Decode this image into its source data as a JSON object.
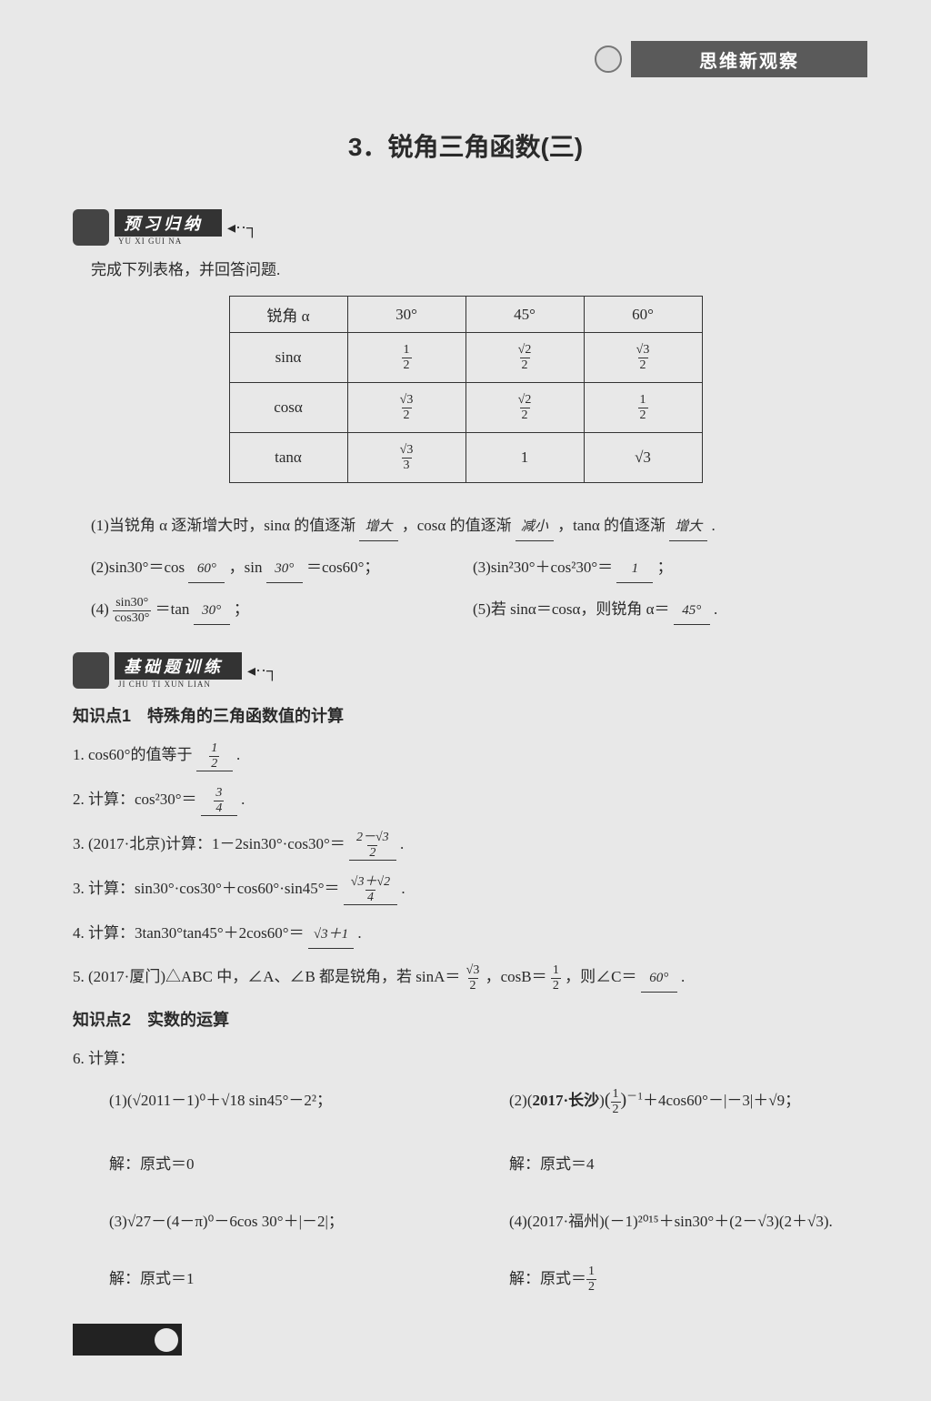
{
  "header": {
    "banner_text": "思维新观察"
  },
  "title": "3．锐角三角函数(三)",
  "section1": {
    "label": "预习归纳",
    "pinyin": "YU XI GUI NA",
    "instruction": "完成下列表格，并回答问题."
  },
  "table": {
    "header": [
      "锐角 α",
      "30°",
      "45°",
      "60°"
    ],
    "rows": [
      {
        "label": "sinα",
        "cells": [
          {
            "num": "1",
            "den": "2"
          },
          {
            "num": "√2",
            "den": "2"
          },
          {
            "num": "√3",
            "den": "2"
          }
        ]
      },
      {
        "label": "cosα",
        "cells": [
          {
            "num": "√3",
            "den": "2"
          },
          {
            "num": "√2",
            "den": "2"
          },
          {
            "num": "1",
            "den": "2"
          }
        ]
      },
      {
        "label": "tanα",
        "cells": [
          {
            "num": "√3",
            "den": "3"
          },
          {
            "num": "1",
            "den": ""
          },
          {
            "num": "√3",
            "den": ""
          }
        ]
      }
    ]
  },
  "q1": {
    "prefix": "(1)当锐角 α 逐渐增大时，sinα 的值逐渐",
    "blank1": "增大",
    "mid": "，cosα 的值逐渐",
    "blank2": "减小",
    "mid2": "，tanα 的值逐渐",
    "blank3": "增大",
    "suffix": "."
  },
  "q2": {
    "left": {
      "p1": "(2)sin30°＝cos",
      "b1": "60°",
      "p2": "，sin",
      "b2": "30°",
      "p3": "＝cos60°；"
    },
    "right": {
      "p1": "(3)sin²30°＋cos²30°＝",
      "b1": "1",
      "p2": "；"
    }
  },
  "q4": {
    "left": {
      "p1": "(4)",
      "frac_num": "sin30°",
      "frac_den": "cos30°",
      "p2": "＝tan",
      "b1": "30°",
      "p3": "；"
    },
    "right": {
      "p1": "(5)若 sinα＝cosα，则锐角 α＝",
      "b1": "45°",
      "p2": "."
    }
  },
  "section2": {
    "label": "基础题训练",
    "pinyin": "JI CHU TI XUN LIAN"
  },
  "kp1": "知识点1　特殊角的三角函数值的计算",
  "p1": {
    "text": "1. cos60°的值等于",
    "ans_num": "1",
    "ans_den": "2",
    "suffix": "."
  },
  "p2": {
    "text": "2. 计算：cos²30°＝",
    "ans_num": "3",
    "ans_den": "4",
    "suffix": "."
  },
  "p3a": {
    "text": "3. (2017·北京)计算：1－2sin30°·cos30°＝",
    "ans_num": "2－√3",
    "ans_den": "2",
    "suffix": "."
  },
  "p3b": {
    "text": "3. 计算：sin30°·cos30°＋cos60°·sin45°＝",
    "ans_num": "√3＋√2",
    "ans_den": "4",
    "suffix": "."
  },
  "p4": {
    "text": "4. 计算：3tan30°tan45°＋2cos60°＝",
    "ans": "√3＋1",
    "suffix": "."
  },
  "p5": {
    "text1": "5. (2017·厦门)△ABC 中，∠A、∠B 都是锐角，若 sinA＝",
    "f1_num": "√3",
    "f1_den": "2",
    "text2": "，cosB＝",
    "f2_num": "1",
    "f2_den": "2",
    "text3": "，则∠C＝",
    "ans": "60°",
    "suffix": "."
  },
  "kp2": "知识点2　实数的运算",
  "p6": {
    "head": "6. 计算：",
    "s1": "(1)(√2011－1)⁰＋√18 sin45°－2²；",
    "s2": "(2)(2017·长沙)(½)⁻¹＋4cos60°－|－3|＋√9；",
    "a1": "解：原式＝0",
    "a2": "解：原式＝4",
    "s3": "(3)√27－(4－π)⁰－6cos 30°＋|－2|；",
    "s4": "(4)(2017·福州)(－1)²⁰¹⁵＋sin30°＋(2－√3)(2＋√3).",
    "a3": "解：原式＝1",
    "a4_pre": "解：原式＝",
    "a4_num": "1",
    "a4_den": "2"
  },
  "colors": {
    "page_bg": "#e8e8e8",
    "text": "#2a2a2a",
    "banner_bg": "#5a5a5a",
    "section_bg": "#333333",
    "border": "#333333"
  }
}
